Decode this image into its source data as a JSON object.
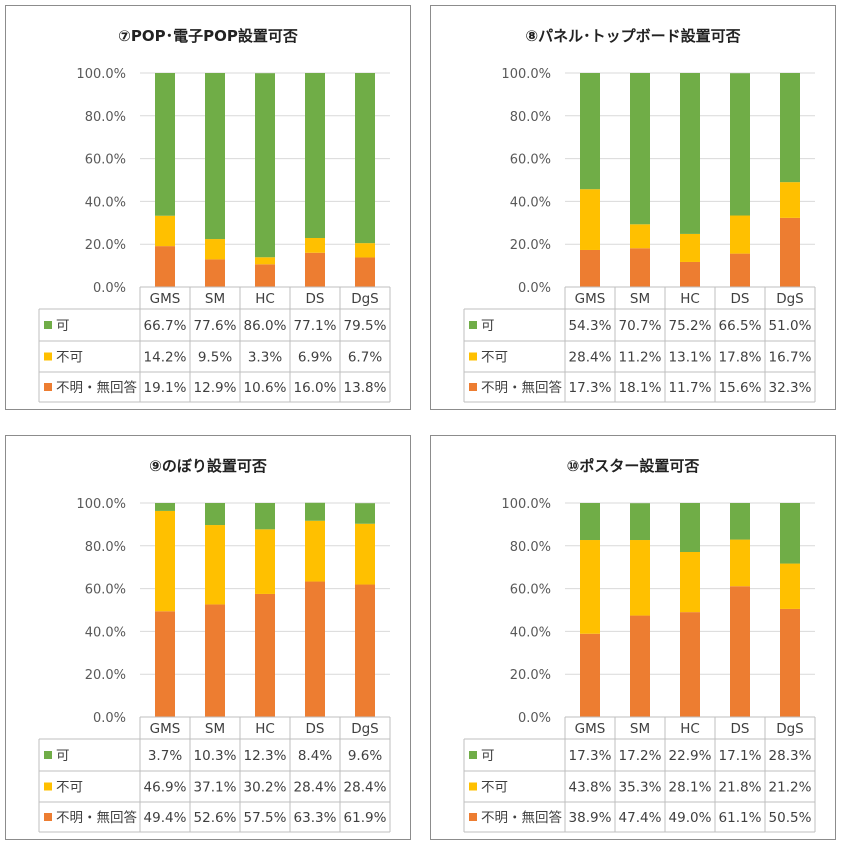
{
  "colors": {
    "可": "#70ad47",
    "不可": "#ffc000",
    "不明・無回答": "#ed7d31"
  },
  "y_ticks": [
    "100.0%",
    "80.0%",
    "60.0%",
    "40.0%",
    "20.0%",
    "0.0%"
  ],
  "chart_data": [
    {
      "type": "bar",
      "stacked": true,
      "title": "⑦POP･電子POP設置可否",
      "categories": [
        "GMS",
        "SM",
        "HC",
        "DS",
        "DgS"
      ],
      "ylim": [
        0,
        100
      ],
      "series": [
        {
          "name": "可",
          "values": [
            66.7,
            77.6,
            86.0,
            77.1,
            79.5
          ],
          "labels": [
            "66.7%",
            "77.6%",
            "86.0%",
            "77.1%",
            "79.5%"
          ]
        },
        {
          "name": "不可",
          "values": [
            14.2,
            9.5,
            3.3,
            6.9,
            6.7
          ],
          "labels": [
            "14.2%",
            "9.5%",
            "3.3%",
            "6.9%",
            "6.7%"
          ]
        },
        {
          "name": "不明・無回答",
          "values": [
            19.1,
            12.9,
            10.6,
            16.0,
            13.8
          ],
          "labels": [
            "19.1%",
            "12.9%",
            "10.6%",
            "16.0%",
            "13.8%"
          ]
        }
      ]
    },
    {
      "type": "bar",
      "stacked": true,
      "title": "⑧パネル･トップボード設置可否",
      "categories": [
        "GMS",
        "SM",
        "HC",
        "DS",
        "DgS"
      ],
      "ylim": [
        0,
        100
      ],
      "series": [
        {
          "name": "可",
          "values": [
            54.3,
            70.7,
            75.2,
            66.5,
            51.0
          ],
          "labels": [
            "54.3%",
            "70.7%",
            "75.2%",
            "66.5%",
            "51.0%"
          ]
        },
        {
          "name": "不可",
          "values": [
            28.4,
            11.2,
            13.1,
            17.8,
            16.7
          ],
          "labels": [
            "28.4%",
            "11.2%",
            "13.1%",
            "17.8%",
            "16.7%"
          ]
        },
        {
          "name": "不明・無回答",
          "values": [
            17.3,
            18.1,
            11.7,
            15.6,
            32.3
          ],
          "labels": [
            "17.3%",
            "18.1%",
            "11.7%",
            "15.6%",
            "32.3%"
          ]
        }
      ]
    },
    {
      "type": "bar",
      "stacked": true,
      "title": "⑨のぼり設置可否",
      "categories": [
        "GMS",
        "SM",
        "HC",
        "DS",
        "DgS"
      ],
      "ylim": [
        0,
        100
      ],
      "series": [
        {
          "name": "可",
          "values": [
            3.7,
            10.3,
            12.3,
            8.4,
            9.6
          ],
          "labels": [
            "3.7%",
            "10.3%",
            "12.3%",
            "8.4%",
            "9.6%"
          ]
        },
        {
          "name": "不可",
          "values": [
            46.9,
            37.1,
            30.2,
            28.4,
            28.4
          ],
          "labels": [
            "46.9%",
            "37.1%",
            "30.2%",
            "28.4%",
            "28.4%"
          ]
        },
        {
          "name": "不明・無回答",
          "values": [
            49.4,
            52.6,
            57.5,
            63.3,
            61.9
          ],
          "labels": [
            "49.4%",
            "52.6%",
            "57.5%",
            "63.3%",
            "61.9%"
          ]
        }
      ]
    },
    {
      "type": "bar",
      "stacked": true,
      "title": "⑩ポスター設置可否",
      "categories": [
        "GMS",
        "SM",
        "HC",
        "DS",
        "DgS"
      ],
      "ylim": [
        0,
        100
      ],
      "series": [
        {
          "name": "可",
          "values": [
            17.3,
            17.2,
            22.9,
            17.1,
            28.3
          ],
          "labels": [
            "17.3%",
            "17.2%",
            "22.9%",
            "17.1%",
            "28.3%"
          ]
        },
        {
          "name": "不可",
          "values": [
            43.8,
            35.3,
            28.1,
            21.8,
            21.2
          ],
          "labels": [
            "43.8%",
            "35.3%",
            "28.1%",
            "21.8%",
            "21.2%"
          ]
        },
        {
          "name": "不明・無回答",
          "values": [
            38.9,
            47.4,
            49.0,
            61.1,
            50.5
          ],
          "labels": [
            "38.9%",
            "47.4%",
            "49.0%",
            "61.1%",
            "50.5%"
          ]
        }
      ]
    }
  ]
}
